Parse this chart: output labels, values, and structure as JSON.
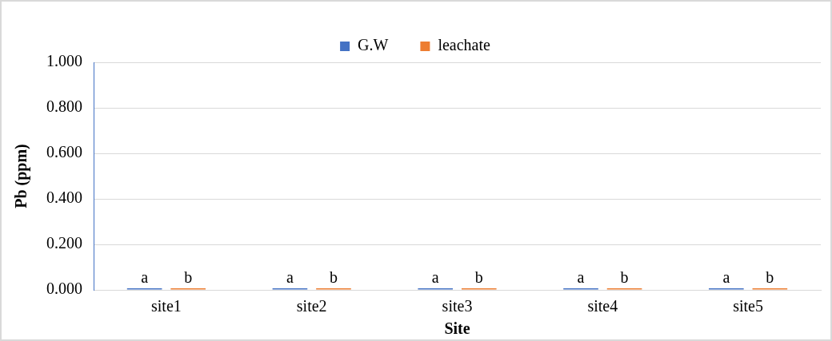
{
  "chart_data": {
    "type": "bar",
    "xlabel": "Site",
    "ylabel": "Pb (ppm)",
    "categories": [
      "site1",
      "site2",
      "site3",
      "site4",
      "site5"
    ],
    "series": [
      {
        "name": "G.W",
        "color": "#4472c4",
        "values": [
          0,
          0,
          0,
          0,
          0
        ],
        "value_labels": [
          "a",
          "a",
          "a",
          "a",
          "a"
        ]
      },
      {
        "name": "leachate",
        "color": "#ed7d31",
        "values": [
          0,
          0,
          0,
          0,
          0
        ],
        "value_labels": [
          "b",
          "b",
          "b",
          "b",
          "b"
        ]
      }
    ],
    "ylim": [
      0,
      1
    ],
    "yticks": [
      {
        "value": 0,
        "label": "0.000"
      },
      {
        "value": 0.2,
        "label": "0.200"
      },
      {
        "value": 0.4,
        "label": "0.400"
      },
      {
        "value": 0.6,
        "label": "0.600"
      },
      {
        "value": 0.8,
        "label": "0.800"
      },
      {
        "value": 1,
        "label": "1.000"
      }
    ],
    "grid": "y",
    "legend": "top"
  }
}
